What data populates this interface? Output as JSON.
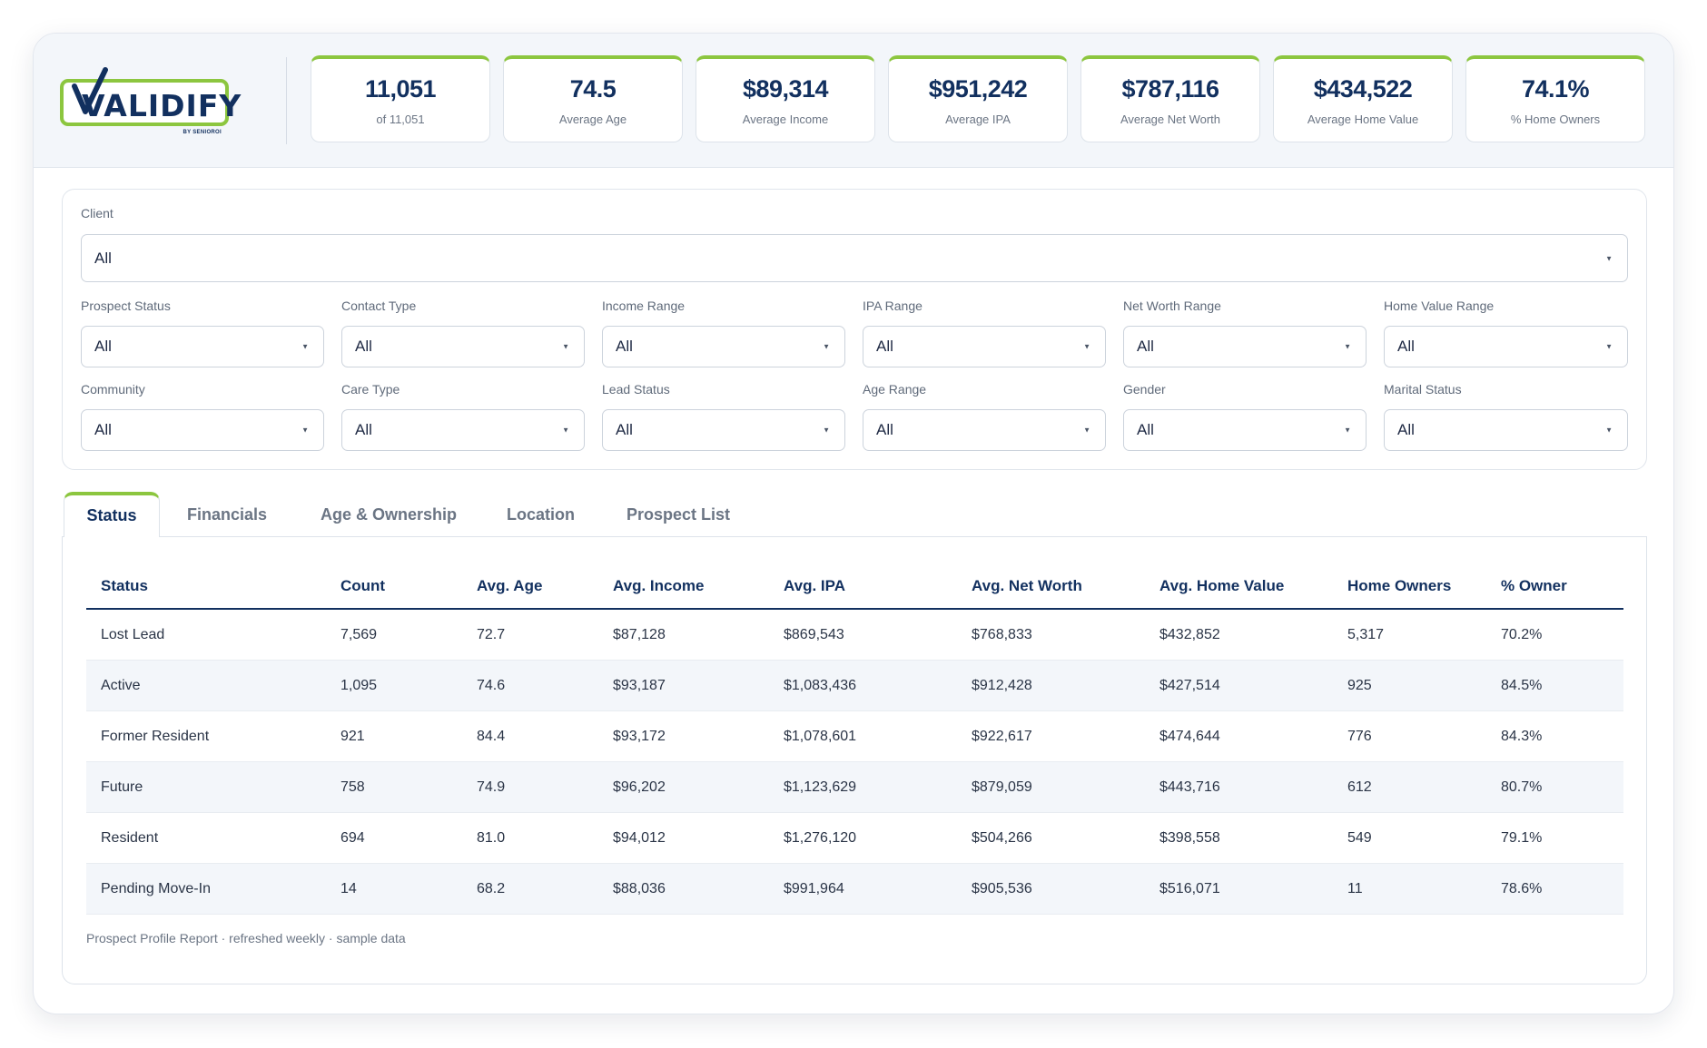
{
  "brand": {
    "logo_text": "VALIDIFY",
    "logo_subtext": "BY SENIOROI",
    "accent_color": "#8cc63f",
    "primary_color": "#12305f"
  },
  "kpis": [
    {
      "value": "11,051",
      "label": "of 11,051"
    },
    {
      "value": "74.5",
      "label": "Average Age"
    },
    {
      "value": "$89,314",
      "label": "Average Income"
    },
    {
      "value": "$951,242",
      "label": "Average IPA"
    },
    {
      "value": "$787,116",
      "label": "Average Net Worth"
    },
    {
      "value": "$434,522",
      "label": "Average Home Value"
    },
    {
      "value": "74.1%",
      "label": "% Home Owners"
    }
  ],
  "filters": {
    "client": {
      "label": "Client",
      "value": "All"
    },
    "row1": [
      {
        "label": "Prospect Status",
        "value": "All"
      },
      {
        "label": "Contact Type",
        "value": "All"
      },
      {
        "label": "Income Range",
        "value": "All"
      },
      {
        "label": "IPA Range",
        "value": "All"
      },
      {
        "label": "Net Worth Range",
        "value": "All"
      },
      {
        "label": "Home Value Range",
        "value": "All"
      }
    ],
    "row2": [
      {
        "label": "Community",
        "value": "All"
      },
      {
        "label": "Care Type",
        "value": "All"
      },
      {
        "label": "Lead Status",
        "value": "All"
      },
      {
        "label": "Age Range",
        "value": "All"
      },
      {
        "label": "Gender",
        "value": "All"
      },
      {
        "label": "Marital Status",
        "value": "All"
      }
    ],
    "caret": "▼"
  },
  "tabs": [
    {
      "label": "Status",
      "active": true
    },
    {
      "label": "Financials",
      "active": false
    },
    {
      "label": "Age & Ownership",
      "active": false
    },
    {
      "label": "Location",
      "active": false
    },
    {
      "label": "Prospect List",
      "active": false
    }
  ],
  "table": {
    "headers": [
      "Status",
      "Count",
      "Avg. Age",
      "Avg. Income",
      "Avg. IPA",
      "Avg. Net Worth",
      "Avg. Home Value",
      "Home Owners",
      "% Owner"
    ],
    "rows": [
      [
        "Lost Lead",
        "7,569",
        "72.7",
        "$87,128",
        "$869,543",
        "$768,833",
        "$432,852",
        "5,317",
        "70.2%"
      ],
      [
        "Active",
        "1,095",
        "74.6",
        "$93,187",
        "$1,083,436",
        "$912,428",
        "$427,514",
        "925",
        "84.5%"
      ],
      [
        "Former Resident",
        "921",
        "84.4",
        "$93,172",
        "$1,078,601",
        "$922,617",
        "$474,644",
        "776",
        "84.3%"
      ],
      [
        "Future",
        "758",
        "74.9",
        "$96,202",
        "$1,123,629",
        "$879,059",
        "$443,716",
        "612",
        "80.7%"
      ],
      [
        "Resident",
        "694",
        "81.0",
        "$94,012",
        "$1,276,120",
        "$504,266",
        "$398,558",
        "549",
        "79.1%"
      ],
      [
        "Pending Move-In",
        "14",
        "68.2",
        "$88,036",
        "$991,964",
        "$905,536",
        "$516,071",
        "11",
        "78.6%"
      ]
    ],
    "footnote": "Prospect Profile Report · refreshed weekly · sample data"
  }
}
